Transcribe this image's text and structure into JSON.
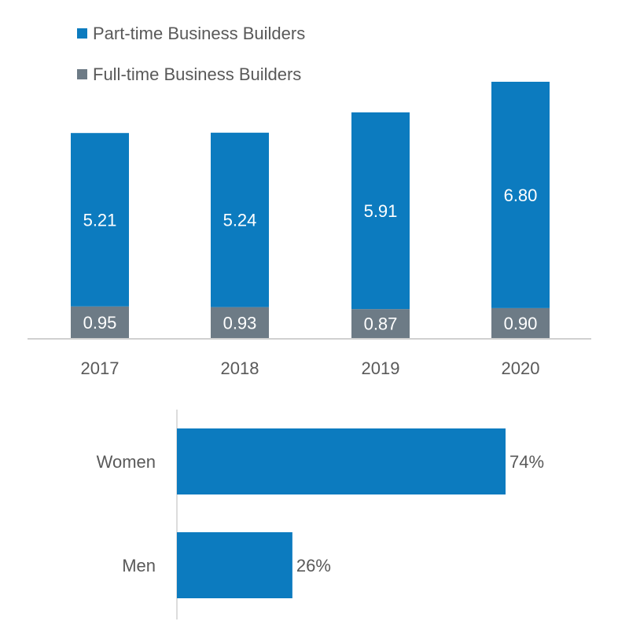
{
  "chart_data": [
    {
      "type": "bar",
      "stacked": true,
      "orientation": "vertical",
      "categories": [
        "2017",
        "2018",
        "2019",
        "2020"
      ],
      "series": [
        {
          "name": "Full-time Business Builders",
          "color": "#6d7b86",
          "values": [
            0.95,
            0.93,
            0.87,
            0.9
          ],
          "labels": [
            "0.95",
            "0.93",
            "0.87",
            "0.90"
          ]
        },
        {
          "name": "Part-time Business Builders",
          "color": "#0c7bbf",
          "values": [
            5.21,
            5.24,
            5.91,
            6.8
          ],
          "labels": [
            "5.21",
            "5.24",
            "5.91",
            "6.80"
          ]
        }
      ],
      "legend_order": [
        "Part-time Business Builders",
        "Full-time Business Builders"
      ],
      "legend": "top-left",
      "ylim": [
        0,
        8.2
      ],
      "grid": false
    },
    {
      "type": "bar",
      "orientation": "horizontal",
      "categories": [
        "Women",
        "Men"
      ],
      "values": [
        74,
        26
      ],
      "labels": [
        "74%",
        "26%"
      ],
      "color": "#0c7bbf",
      "xlim": [
        0,
        100
      ],
      "grid": false
    }
  ]
}
